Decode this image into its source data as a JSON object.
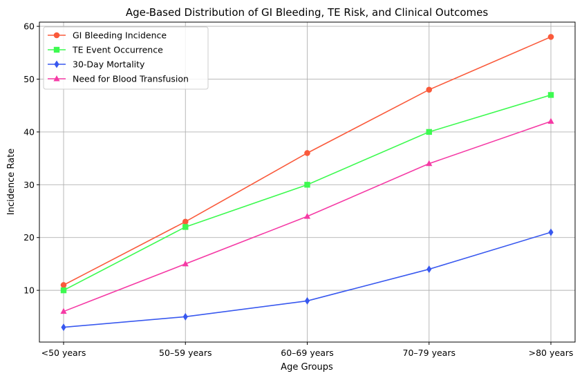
{
  "chart_data": {
    "type": "line",
    "title": "Age-Based Distribution of GI Bleeding, TE Risk, and Clinical Outcomes",
    "xlabel": "Age Groups",
    "ylabel": "Incidence Rate",
    "categories": [
      "<50 years",
      "50–59 years",
      "60–69 years",
      "70–79 years",
      ">80 years"
    ],
    "ylim": [
      0.2,
      60.8
    ],
    "yticks": [
      10,
      20,
      30,
      40,
      50,
      60
    ],
    "grid": true,
    "legend_position": "top-left",
    "series": [
      {
        "name": "GI Bleeding Incidence",
        "values": [
          11,
          23,
          36,
          48,
          58
        ],
        "color": "#fa5a3b",
        "marker": "circle"
      },
      {
        "name": "TE Event Occurrence",
        "values": [
          10,
          22,
          30,
          40,
          47
        ],
        "color": "#3dfa50",
        "marker": "square"
      },
      {
        "name": "30-Day Mortality",
        "values": [
          3,
          5,
          8,
          14,
          21
        ],
        "color": "#3858ef",
        "marker": "diamond"
      },
      {
        "name": "Need for Blood Transfusion",
        "values": [
          6,
          15,
          24,
          34,
          42
        ],
        "color": "#f53aa5",
        "marker": "triangle"
      }
    ]
  }
}
